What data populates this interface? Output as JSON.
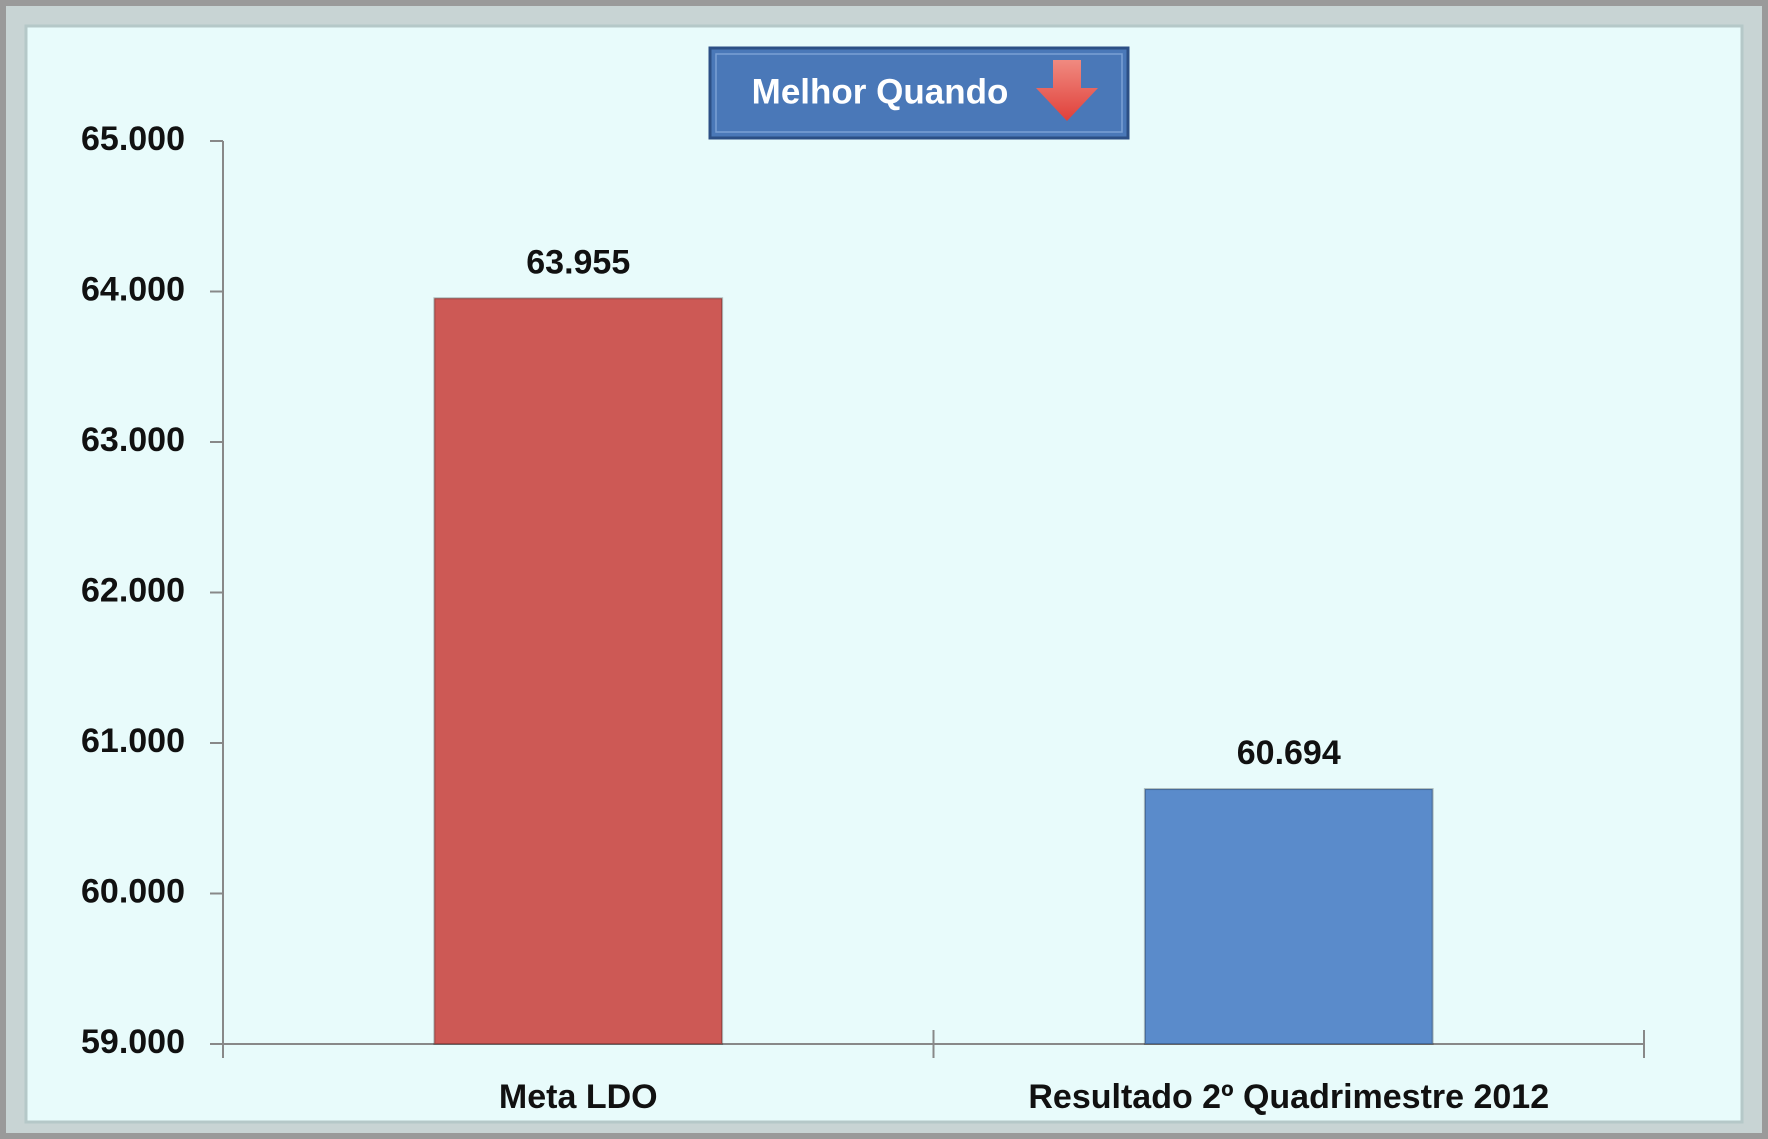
{
  "chart_data": {
    "type": "bar",
    "annotation": "Melhor Quando",
    "categories": [
      "Meta LDO",
      "Resultado 2º Quadrimestre 2012"
    ],
    "values": [
      63955,
      60694
    ],
    "value_labels": [
      "63.955",
      "60.694"
    ],
    "colors": [
      "#cd5955",
      "#5a8bcb"
    ],
    "ylim": [
      59000,
      65000
    ],
    "yticks": [
      {
        "value": 59000,
        "label": "59.000"
      },
      {
        "value": 60000,
        "label": "60.000"
      },
      {
        "value": 61000,
        "label": "61.000"
      },
      {
        "value": 62000,
        "label": "62.000"
      },
      {
        "value": 63000,
        "label": "63.000"
      },
      {
        "value": 64000,
        "label": "64.000"
      },
      {
        "value": 65000,
        "label": "65.000"
      }
    ],
    "grid": false
  }
}
